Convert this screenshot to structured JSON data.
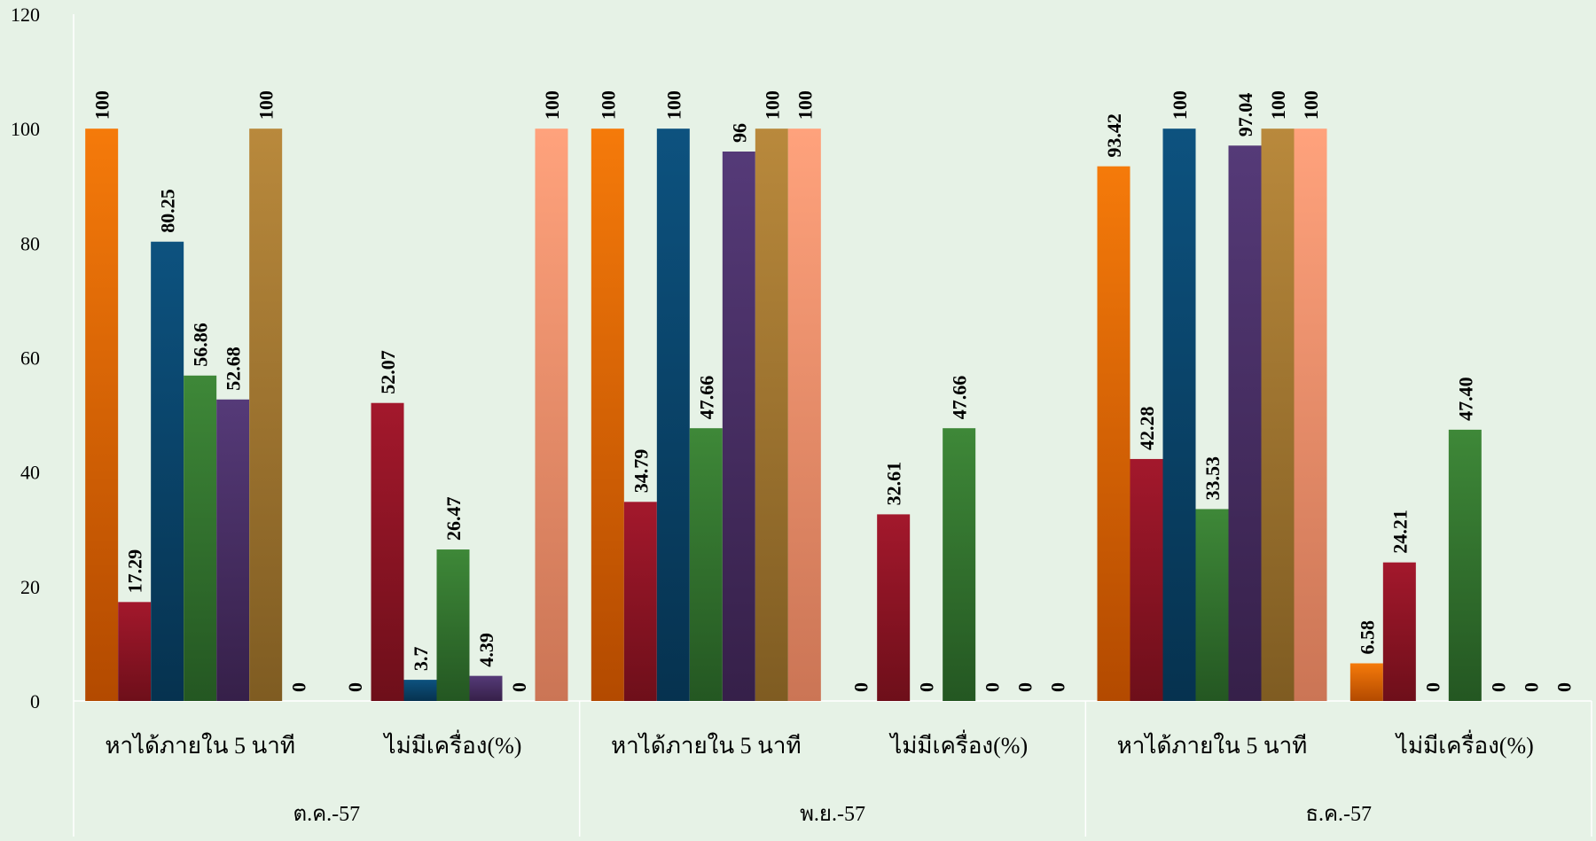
{
  "chart_data": {
    "type": "bar",
    "ylim": [
      0,
      120
    ],
    "yticks": [
      0,
      20,
      40,
      60,
      80,
      100,
      120
    ],
    "grid": false,
    "legend": "none",
    "months": [
      "ต.ค.-57",
      "พ.ย.-57",
      "ธ.ค.-57"
    ],
    "subcategories": [
      "หาได้ภายใน 5 นาที",
      "ไม่มีเครื่อง(%)"
    ],
    "series_colors": [
      [
        "#f57a0a",
        "#b34a00"
      ],
      [
        "#a3182c",
        "#6e0f1a"
      ],
      [
        "#0d527f",
        "#06324f"
      ],
      [
        "#3e8838",
        "#245722"
      ],
      [
        "#553a78",
        "#362049"
      ],
      [
        "#b9893c",
        "#7f5c22"
      ],
      [
        "#ffa27c",
        "#cb7555"
      ]
    ],
    "groups": [
      {
        "month": "ต.ค.-57",
        "sub": "หาได้ภายใน 5 นาที",
        "values": [
          "100",
          "17.29",
          "80.25",
          "56.86",
          "52.68",
          "100",
          "0"
        ]
      },
      {
        "month": "ต.ค.-57",
        "sub": "ไม่มีเครื่อง(%)",
        "values": [
          "0",
          "52.07",
          "3.7",
          "26.47",
          "4.39",
          "0",
          "100"
        ]
      },
      {
        "month": "พ.ย.-57",
        "sub": "หาได้ภายใน 5 นาที",
        "values": [
          "100",
          "34.79",
          "100",
          "47.66",
          "96",
          "100",
          "100"
        ]
      },
      {
        "month": "พ.ย.-57",
        "sub": "ไม่มีเครื่อง(%)",
        "values": [
          "0",
          "32.61",
          "0",
          "47.66",
          "0",
          "0",
          "0"
        ]
      },
      {
        "month": "ธ.ค.-57",
        "sub": "หาได้ภายใน 5 นาที",
        "values": [
          "93.42",
          "42.28",
          "100",
          "33.53",
          "97.04",
          "100",
          "100"
        ]
      },
      {
        "month": "ธ.ค.-57",
        "sub": "ไม่มีเครื่อง(%)",
        "values": [
          "6.58",
          "24.21",
          "0",
          "47.40",
          "0",
          "0",
          "0"
        ]
      }
    ]
  }
}
